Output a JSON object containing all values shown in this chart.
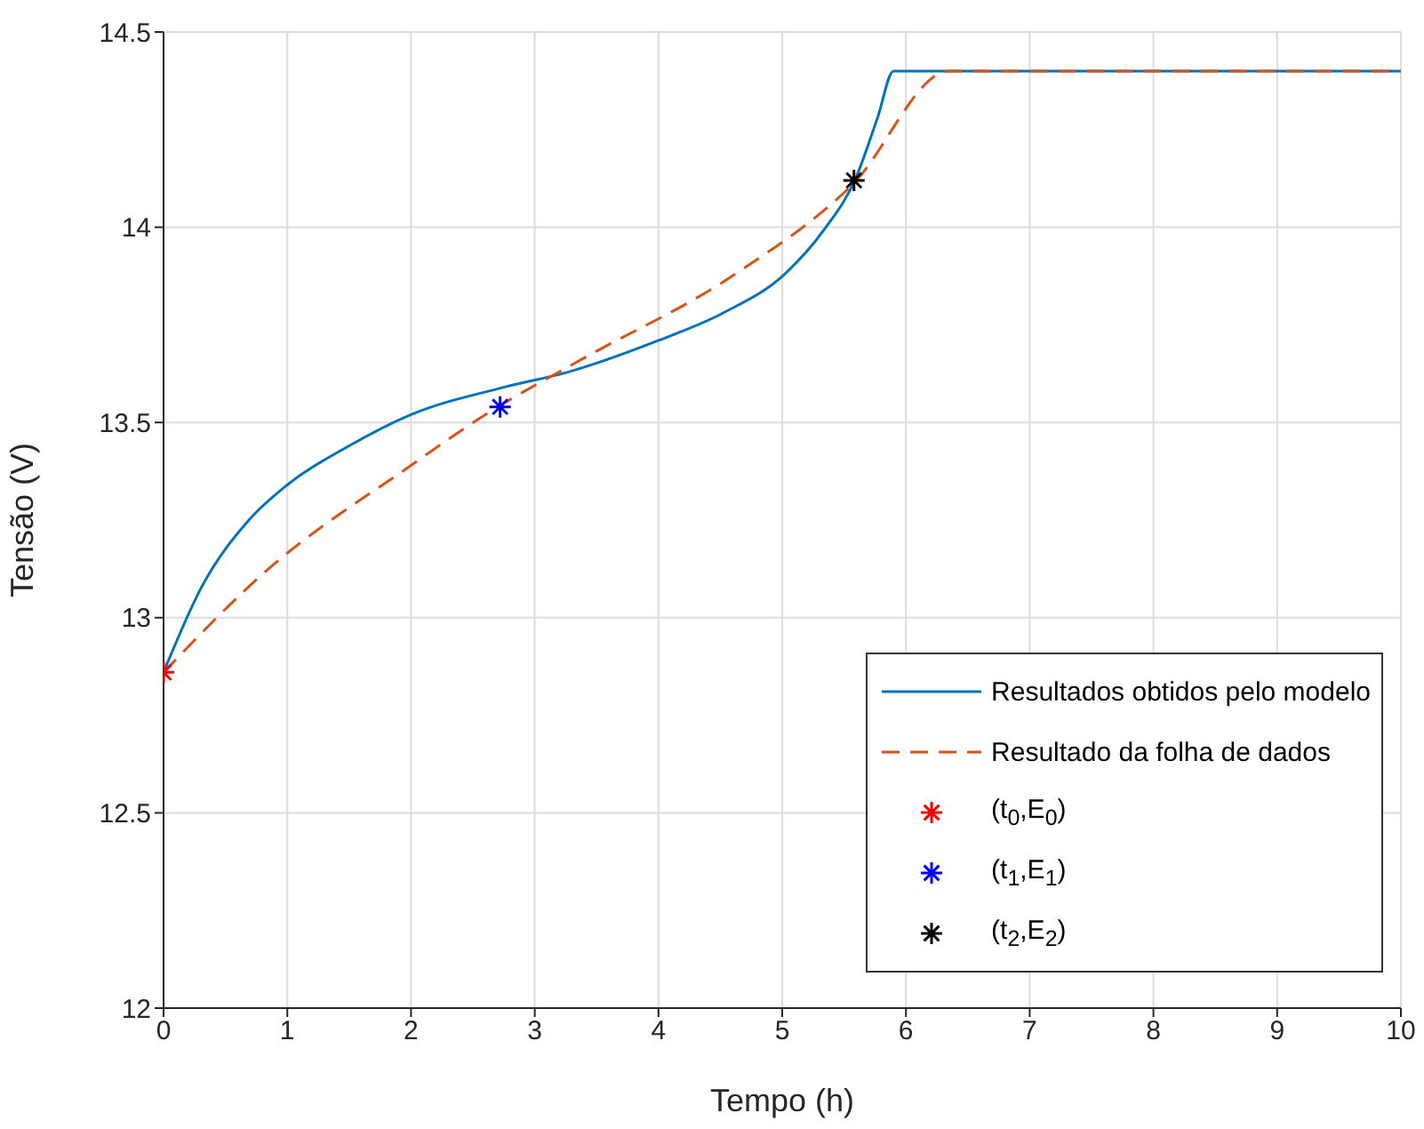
{
  "chart_data": {
    "type": "line",
    "xlabel": "Tempo (h)",
    "ylabel": "Tensão (V)",
    "xlim": [
      0,
      10
    ],
    "xticks": [
      0,
      1,
      2,
      3,
      4,
      5,
      6,
      7,
      8,
      9,
      10
    ],
    "ylim": [
      12,
      14.5
    ],
    "yticks": [
      12,
      12.5,
      13,
      13.5,
      14,
      14.5
    ],
    "grid": true,
    "legend": "bottom right",
    "series": [
      {
        "name": "Resultados obtidos pelo modelo",
        "color": "#0072bd",
        "line_style": "solid",
        "x": [
          0,
          0.31,
          0.69,
          1.0,
          1.5,
          2.0,
          2.75,
          3.28,
          4.0,
          4.52,
          5.02,
          5.33,
          5.6,
          5.77,
          5.9,
          10
        ],
        "values": [
          12.86,
          13.08,
          13.25,
          13.34,
          13.44,
          13.52,
          13.59,
          13.63,
          13.71,
          13.78,
          13.88,
          13.99,
          14.13,
          14.28,
          14.4,
          14.4
        ]
      },
      {
        "name": "Resultado da folha de dados",
        "color": "#d95319",
        "line_style": "dashed",
        "x": [
          0,
          0.83,
          2.0,
          2.6,
          3.37,
          4.62,
          5.57,
          6.35,
          10
        ],
        "values": [
          12.86,
          13.12,
          13.39,
          13.52,
          13.66,
          13.88,
          14.11,
          14.4,
          14.4
        ]
      },
      {
        "name": "(t$_{0}$,E$_{0}$)",
        "type": "scatter",
        "marker": "cross",
        "color": "#ff0000",
        "x": [
          0
        ],
        "values": [
          12.86
        ]
      },
      {
        "name": "(t$_{1}$,E$_{1}$)",
        "type": "scatter",
        "marker": "cross",
        "color": "#0000ff",
        "x": [
          2.72
        ],
        "values": [
          13.54
        ]
      },
      {
        "name": "(t$_{2}$,E$_{2}$)",
        "type": "scatter",
        "marker": "cross",
        "color": "#000000",
        "x": [
          5.58
        ],
        "values": [
          14.12
        ]
      }
    ]
  }
}
